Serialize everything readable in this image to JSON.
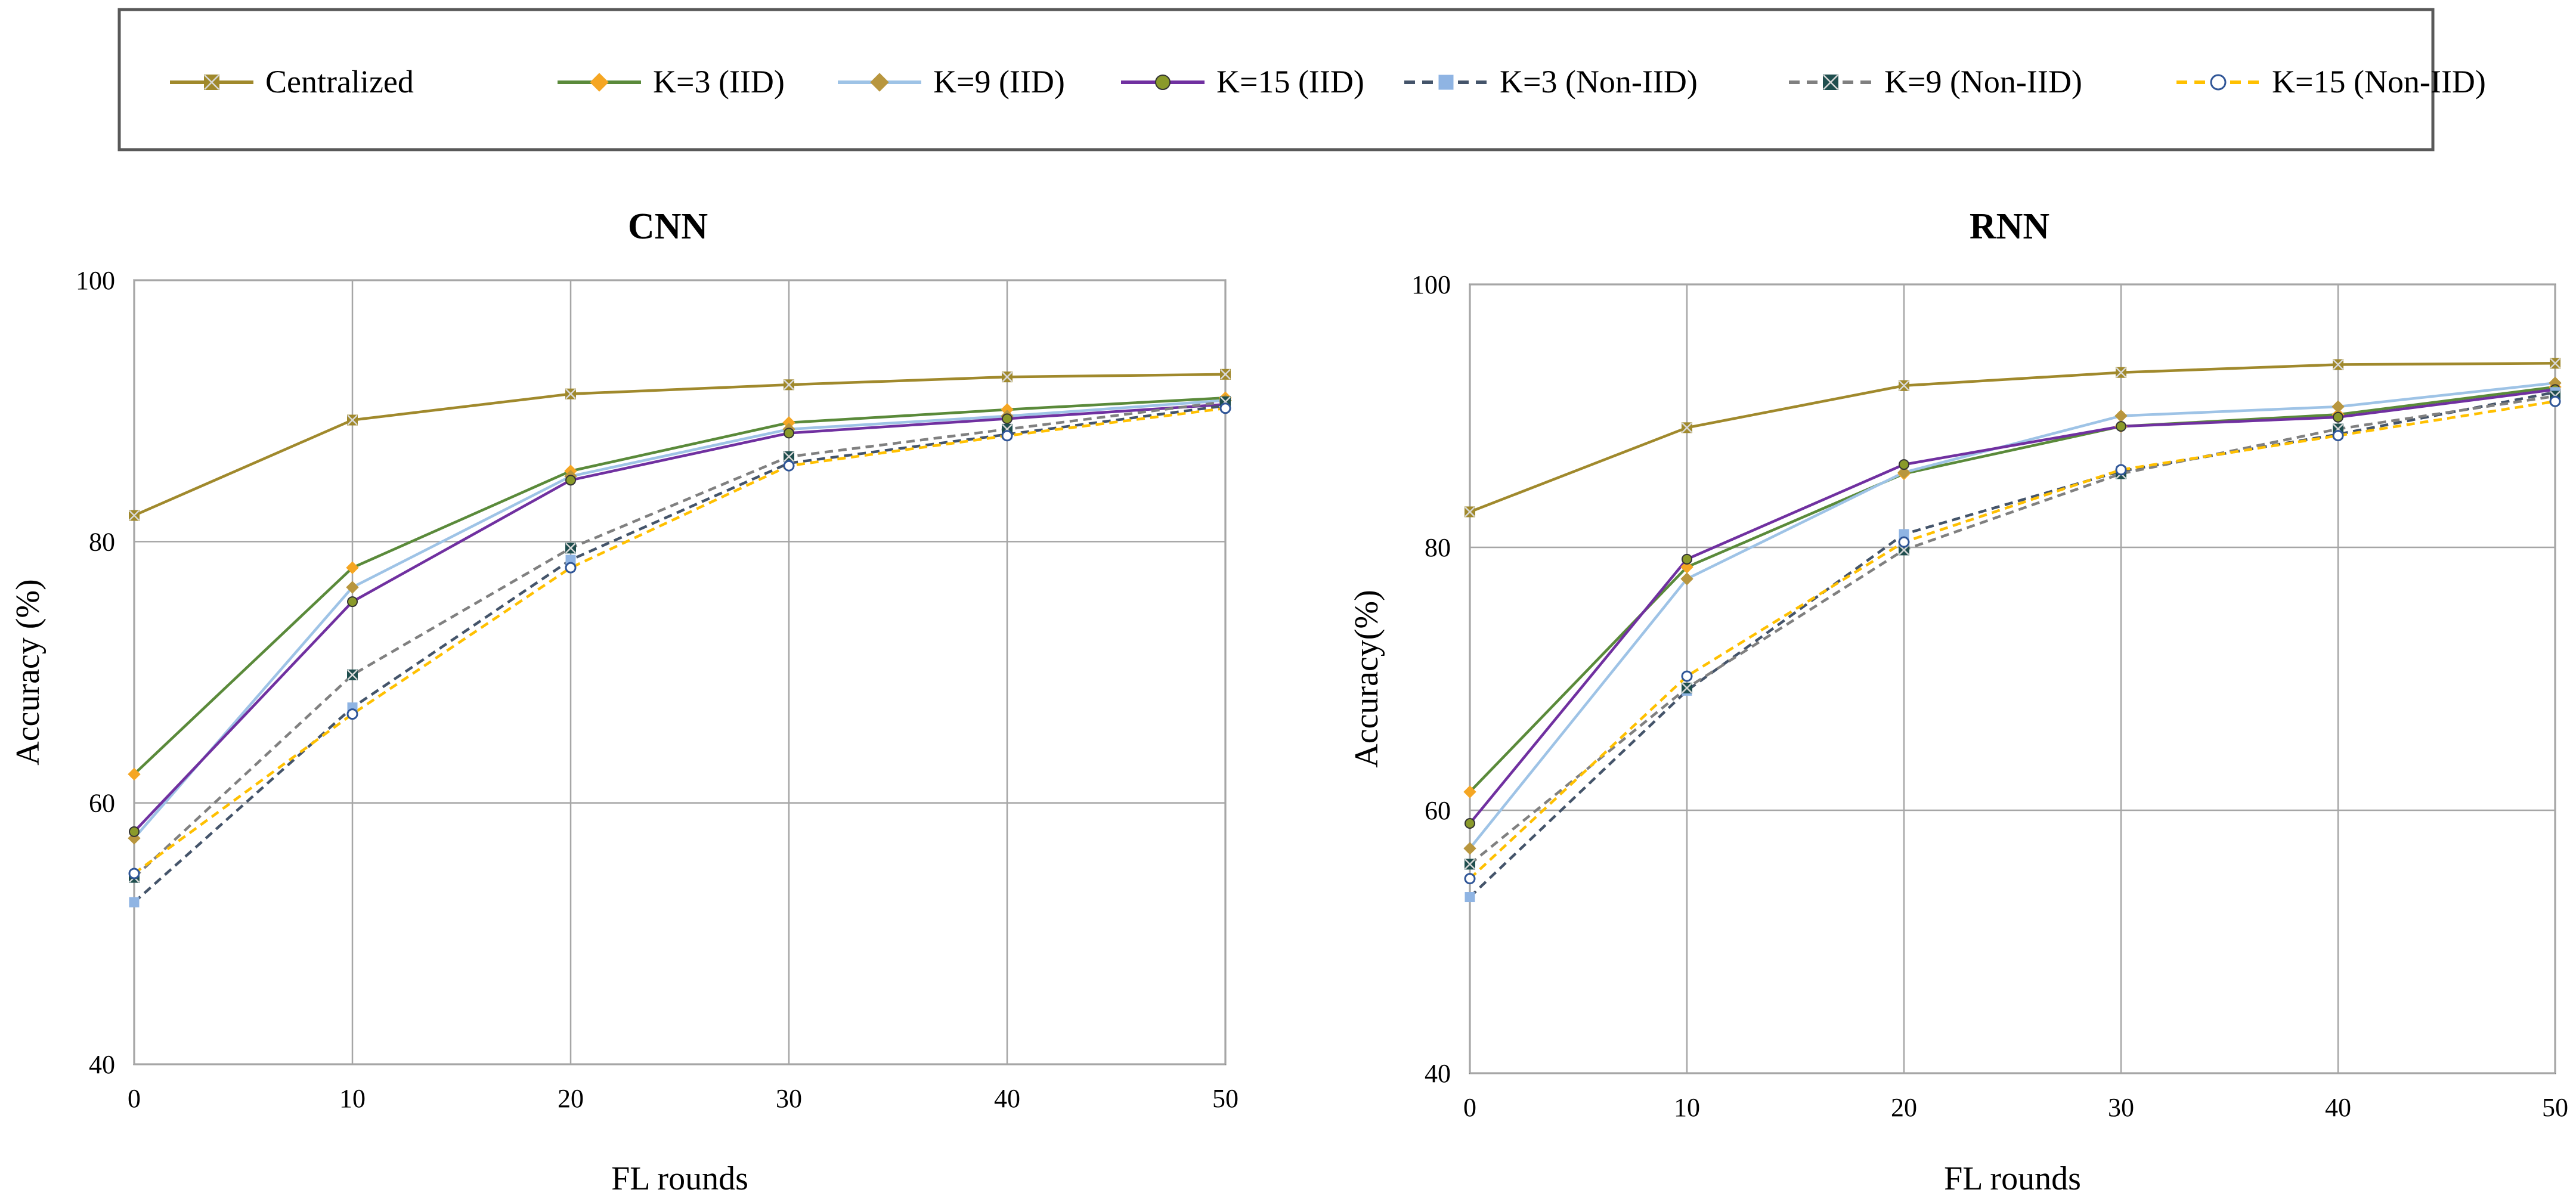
{
  "legend": {
    "items": [
      {
        "label": "Centralized",
        "color": "#A0892C",
        "dash": false,
        "marker": "square-x"
      },
      {
        "label": "K=3 (IID)",
        "color": "#5A8A3A",
        "dash": false,
        "marker": "diamond",
        "marker_color": "#F5A623"
      },
      {
        "label": "K=9 (IID)",
        "color": "#9EC3E6",
        "dash": false,
        "marker": "diamond",
        "marker_color": "#B8963E"
      },
      {
        "label": "K=15 (IID)",
        "color": "#7030A0",
        "dash": false,
        "marker": "circle",
        "marker_color": "#8A9A2A"
      },
      {
        "label": "K=3  (Non-IID)",
        "color": "#44546A",
        "dash": true,
        "marker": "square",
        "marker_color": "#8FB4E3"
      },
      {
        "label": "K=9  (Non-IID)",
        "color": "#808080",
        "dash": true,
        "marker": "square-x",
        "marker_color": "#1F4E4E"
      },
      {
        "label": "K=15  (Non-IID)",
        "color": "#FFC000",
        "dash": true,
        "marker": "open-circle",
        "marker_color": "#2F5597"
      }
    ]
  },
  "chart_data": [
    {
      "type": "line",
      "title": "CNN",
      "xlabel": "FL rounds",
      "ylabel": "Accuracy (%)",
      "x": [
        0,
        10,
        20,
        30,
        40,
        50
      ],
      "xticks": [
        "0",
        "10",
        "20",
        "30",
        "40",
        "50"
      ],
      "yticks": [
        "40",
        "60",
        "80",
        "100"
      ],
      "xlim": [
        0,
        50
      ],
      "ylim": [
        40,
        100
      ],
      "grid": true,
      "series": [
        {
          "name": "Centralized",
          "values": [
            82.0,
            89.3,
            91.3,
            92.0,
            92.6,
            92.8
          ]
        },
        {
          "name": "K=3 (IID)",
          "values": [
            62.2,
            78.0,
            85.4,
            89.1,
            90.1,
            91.0
          ]
        },
        {
          "name": "K=9 (IID)",
          "values": [
            57.3,
            76.5,
            85.0,
            88.6,
            89.6,
            90.8
          ]
        },
        {
          "name": "K=15 (IID)",
          "values": [
            57.8,
            75.4,
            84.7,
            88.3,
            89.4,
            90.5
          ]
        },
        {
          "name": "K=3  (Non-IID)",
          "values": [
            52.4,
            67.3,
            78.6,
            86.0,
            88.2,
            90.4
          ]
        },
        {
          "name": "K=9  (Non-IID)",
          "values": [
            54.3,
            69.8,
            79.5,
            86.5,
            88.6,
            90.7
          ]
        },
        {
          "name": "K=15  (Non-IID)",
          "values": [
            54.6,
            66.8,
            78.0,
            85.8,
            88.1,
            90.2
          ]
        }
      ]
    },
    {
      "type": "line",
      "title": "RNN",
      "xlabel": "FL rounds",
      "ylabel": "Accuracy(%)",
      "x": [
        0,
        10,
        20,
        30,
        40,
        50
      ],
      "xticks": [
        "0",
        "10",
        "20",
        "30",
        "40",
        "50"
      ],
      "yticks": [
        "40",
        "60",
        "80",
        "100"
      ],
      "xlim": [
        0,
        50
      ],
      "ylim": [
        40,
        100
      ],
      "grid": true,
      "series": [
        {
          "name": "Centralized",
          "values": [
            82.7,
            89.1,
            92.3,
            93.3,
            93.9,
            94.0
          ]
        },
        {
          "name": "K=3 (IID)",
          "values": [
            61.4,
            78.5,
            85.6,
            89.2,
            90.1,
            92.2
          ]
        },
        {
          "name": "K=9 (IID)",
          "values": [
            57.1,
            77.6,
            85.7,
            90.0,
            90.7,
            92.5
          ]
        },
        {
          "name": "K=15 (IID)",
          "values": [
            59.0,
            79.1,
            86.3,
            89.2,
            89.9,
            92.0
          ]
        },
        {
          "name": "K=3  (Non-IID)",
          "values": [
            53.4,
            69.1,
            81.0,
            85.8,
            88.6,
            91.8
          ]
        },
        {
          "name": "K=9  (Non-IID)",
          "values": [
            55.9,
            69.3,
            79.8,
            85.6,
            89.0,
            91.5
          ]
        },
        {
          "name": "K=15  (Non-IID)",
          "values": [
            54.8,
            70.2,
            80.4,
            85.9,
            88.5,
            91.1
          ]
        }
      ]
    }
  ]
}
